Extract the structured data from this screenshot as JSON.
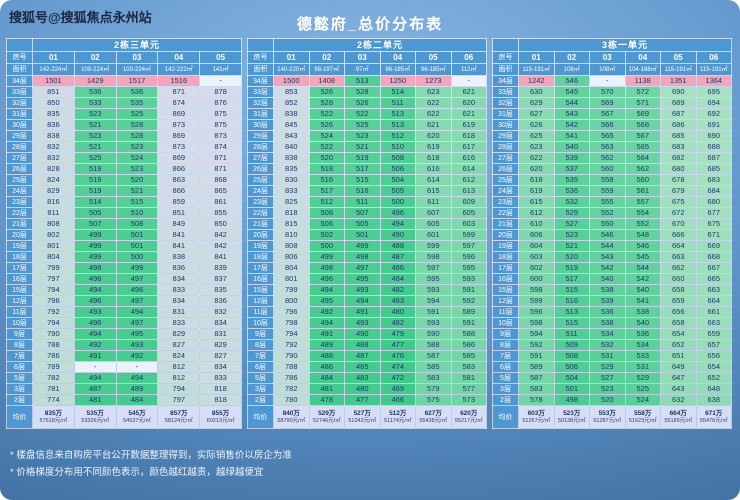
{
  "watermark": "搜狐号@搜狐焦点永州站",
  "title": "德懿府_总价分布表",
  "corner": {
    "row_label": "房号",
    "area_label": "面积",
    "avg_label": "均价"
  },
  "floors": [
    "34层",
    "33层",
    "32层",
    "31层",
    "30层",
    "29层",
    "28层",
    "27层",
    "26层",
    "25层",
    "24层",
    "23层",
    "22层",
    "21层",
    "20层",
    "19层",
    "18层",
    "17层",
    "16层",
    "15层",
    "12层",
    "11层",
    "10层",
    "9层",
    "8层",
    "7层",
    "6层",
    "5层",
    "3层",
    "2层"
  ],
  "notes": [
    "* 楼盘信息来自购房平台公开数据整理得到，实际销售价以房企为准",
    "* 价格梯度分布用不同颜色表示，颜色越红越贵，越绿越便宜"
  ],
  "colors": {
    "header_blue": "#4e97d2",
    "pink_high": "#f3a6bb",
    "green_low": "#3fc98b",
    "green_mid": "#a6e0c2",
    "lavender_high": "#dcdaf0",
    "dash_bg": "#ecf2fa",
    "avg_bg": "#d6def5"
  },
  "chart_data": [
    {
      "type": "heatmap",
      "title": "2栋三单元",
      "units": [
        "01",
        "02",
        "03",
        "04",
        "05"
      ],
      "areas": [
        "142-224㎡",
        "100-224㎡",
        "100-224㎡",
        "142-222㎡",
        "141㎡"
      ],
      "value_unit": "万",
      "rows": [
        [
          1501,
          1429,
          1517,
          1516,
          "-"
        ],
        [
          851,
          536,
          536,
          871,
          878
        ],
        [
          850,
          533,
          535,
          874,
          876
        ],
        [
          835,
          523,
          525,
          869,
          875
        ],
        [
          836,
          521,
          528,
          873,
          875
        ],
        [
          838,
          523,
          528,
          869,
          873
        ],
        [
          832,
          521,
          523,
          873,
          874
        ],
        [
          832,
          525,
          524,
          869,
          871
        ],
        [
          828,
          519,
          523,
          866,
          871
        ],
        [
          824,
          519,
          520,
          863,
          868
        ],
        [
          829,
          519,
          521,
          866,
          865
        ],
        [
          816,
          514,
          515,
          859,
          861
        ],
        [
          811,
          505,
          510,
          851,
          855
        ],
        [
          808,
          507,
          508,
          849,
          850
        ],
        [
          802,
          499,
          501,
          841,
          842
        ],
        [
          801,
          499,
          501,
          841,
          842
        ],
        [
          804,
          499,
          500,
          838,
          841
        ],
        [
          799,
          498,
          499,
          836,
          839
        ],
        [
          797,
          496,
          497,
          834,
          837
        ],
        [
          794,
          494,
          496,
          833,
          835
        ],
        [
          796,
          496,
          497,
          834,
          836
        ],
        [
          792,
          493,
          494,
          831,
          832
        ],
        [
          794,
          496,
          497,
          833,
          834
        ],
        [
          790,
          494,
          495,
          829,
          831
        ],
        [
          788,
          492,
          493,
          827,
          829
        ],
        [
          786,
          491,
          492,
          824,
          827
        ],
        [
          789,
          "-",
          "-",
          812,
          834
        ],
        [
          782,
          494,
          494,
          812,
          833
        ],
        [
          781,
          487,
          489,
          794,
          818
        ],
        [
          774,
          481,
          484,
          797,
          818
        ]
      ],
      "averages": [
        [
          "835万",
          "57618元/㎡"
        ],
        [
          "535万",
          "53326元/㎡"
        ],
        [
          "545万",
          "54537元/㎡"
        ],
        [
          "857万",
          "58124元/㎡"
        ],
        [
          "855万",
          "60213元/㎡"
        ]
      ]
    },
    {
      "type": "heatmap",
      "title": "2栋二单元",
      "units": [
        "01",
        "02",
        "03",
        "04",
        "05",
        "06"
      ],
      "areas": [
        "140-220㎡",
        "98-197㎡",
        "97㎡",
        "96-185㎡",
        "96-185㎡",
        "112㎡"
      ],
      "value_unit": "万",
      "rows": [
        [
          1500,
          1408,
          513,
          1250,
          1273,
          "-"
        ],
        [
          853,
          526,
          528,
          514,
          623,
          621
        ],
        [
          852,
          528,
          526,
          511,
          622,
          620
        ],
        [
          838,
          522,
          522,
          513,
          622,
          621
        ],
        [
          845,
          526,
          525,
          513,
          621,
          619
        ],
        [
          843,
          524,
          523,
          512,
          620,
          618
        ],
        [
          840,
          522,
          521,
          510,
          619,
          617
        ],
        [
          838,
          520,
          519,
          508,
          618,
          616
        ],
        [
          835,
          518,
          517,
          506,
          616,
          614
        ],
        [
          830,
          516,
          515,
          504,
          614,
          612
        ],
        [
          833,
          517,
          516,
          505,
          615,
          613
        ],
        [
          825,
          512,
          511,
          500,
          611,
          609
        ],
        [
          818,
          508,
          507,
          496,
          607,
          605
        ],
        [
          815,
          506,
          505,
          494,
          605,
          603
        ],
        [
          810,
          502,
          501,
          490,
          601,
          599
        ],
        [
          808,
          500,
          499,
          488,
          599,
          597
        ],
        [
          806,
          499,
          498,
          487,
          598,
          596
        ],
        [
          804,
          498,
          497,
          486,
          597,
          595
        ],
        [
          801,
          496,
          495,
          484,
          595,
          593
        ],
        [
          799,
          494,
          493,
          482,
          593,
          591
        ],
        [
          800,
          495,
          494,
          483,
          594,
          592
        ],
        [
          796,
          492,
          491,
          480,
          591,
          589
        ],
        [
          798,
          494,
          493,
          482,
          593,
          591
        ],
        [
          794,
          491,
          490,
          479,
          590,
          588
        ],
        [
          792,
          489,
          488,
          477,
          588,
          586
        ],
        [
          790,
          488,
          487,
          476,
          587,
          585
        ],
        [
          788,
          486,
          485,
          474,
          585,
          583
        ],
        [
          786,
          484,
          483,
          472,
          583,
          581
        ],
        [
          782,
          481,
          480,
          469,
          579,
          577
        ],
        [
          780,
          478,
          477,
          466,
          575,
          573
        ]
      ],
      "averages": [
        [
          "840万",
          "58790元/㎡"
        ],
        [
          "529万",
          "52746元/㎡"
        ],
        [
          "527万",
          "51242元/㎡"
        ],
        [
          "512万",
          "51174元/㎡"
        ],
        [
          "627万",
          "55438元/㎡"
        ],
        [
          "620万",
          "55217元/㎡"
        ]
      ]
    },
    {
      "type": "heatmap",
      "title": "3栋一单元",
      "units": [
        "01",
        "02",
        "03",
        "04",
        "05",
        "06"
      ],
      "areas": [
        "115-191㎡",
        "108㎡",
        "108㎡",
        "104-168㎡",
        "115-191㎡",
        "115-191㎡"
      ],
      "value_unit": "万",
      "rows": [
        [
          1242,
          546,
          "-",
          1138,
          1351,
          1364
        ],
        [
          630,
          545,
          570,
          572,
          690,
          695
        ],
        [
          629,
          544,
          569,
          571,
          689,
          694
        ],
        [
          627,
          543,
          567,
          569,
          687,
          692
        ],
        [
          626,
          542,
          566,
          568,
          686,
          691
        ],
        [
          625,
          541,
          565,
          567,
          685,
          690
        ],
        [
          623,
          540,
          563,
          565,
          683,
          688
        ],
        [
          622,
          539,
          562,
          564,
          682,
          687
        ],
        [
          620,
          537,
          560,
          562,
          680,
          685
        ],
        [
          618,
          535,
          558,
          560,
          678,
          683
        ],
        [
          619,
          536,
          559,
          561,
          679,
          684
        ],
        [
          615,
          532,
          555,
          557,
          675,
          680
        ],
        [
          612,
          529,
          552,
          554,
          672,
          677
        ],
        [
          610,
          527,
          550,
          552,
          670,
          675
        ],
        [
          606,
          523,
          546,
          548,
          666,
          671
        ],
        [
          604,
          521,
          544,
          546,
          664,
          669
        ],
        [
          603,
          520,
          543,
          545,
          663,
          668
        ],
        [
          602,
          519,
          542,
          544,
          662,
          667
        ],
        [
          600,
          517,
          540,
          542,
          660,
          665
        ],
        [
          598,
          515,
          538,
          540,
          658,
          663
        ],
        [
          599,
          516,
          539,
          541,
          659,
          664
        ],
        [
          596,
          513,
          536,
          538,
          656,
          661
        ],
        [
          598,
          515,
          538,
          540,
          658,
          663
        ],
        [
          594,
          511,
          534,
          536,
          654,
          659
        ],
        [
          592,
          509,
          532,
          534,
          652,
          657
        ],
        [
          591,
          508,
          531,
          533,
          651,
          656
        ],
        [
          589,
          506,
          529,
          531,
          649,
          654
        ],
        [
          587,
          504,
          527,
          529,
          647,
          652
        ],
        [
          583,
          501,
          523,
          525,
          643,
          648
        ],
        [
          578,
          498,
          520,
          524,
          632,
          638
        ]
      ],
      "averages": [
        [
          "603万",
          "51267元/㎡"
        ],
        [
          "523万",
          "50138元/㎡"
        ],
        [
          "553万",
          "51287元/㎡"
        ],
        [
          "558万",
          "51623元/㎡"
        ],
        [
          "664万",
          "55189元/㎡"
        ],
        [
          "671万",
          "55476元/㎡"
        ]
      ]
    }
  ]
}
